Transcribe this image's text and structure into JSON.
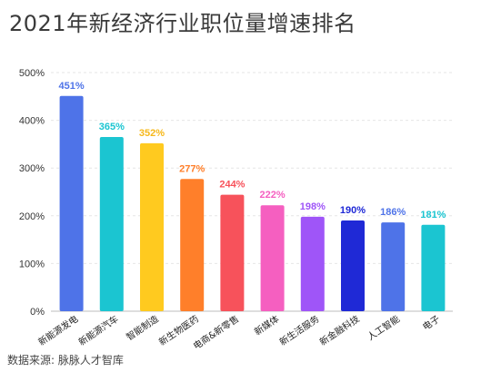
{
  "page": {
    "title": "2021年新经济行业职位量增速排名",
    "source": "数据来源: 脉脉人才智库"
  },
  "chart_data": {
    "type": "bar",
    "title": "2021年新经济行业职位量增速排名",
    "xlabel": "",
    "ylabel": "",
    "ylim": [
      0,
      500
    ],
    "yticks": [
      0,
      100,
      200,
      300,
      400,
      500
    ],
    "ytick_labels": [
      "0%",
      "100%",
      "200%",
      "300%",
      "400%",
      "500%"
    ],
    "grid": true,
    "categories": [
      "新能源发电",
      "新能源汽车",
      "智能制造",
      "新生物医药",
      "电商&新零售",
      "新媒体",
      "新生活服务",
      "新金融科技",
      "人工智能",
      "电子"
    ],
    "values": [
      451,
      365,
      352,
      277,
      244,
      222,
      198,
      190,
      186,
      181
    ],
    "data_labels": [
      "451%",
      "365%",
      "352%",
      "277%",
      "244%",
      "222%",
      "198%",
      "190%",
      "186%",
      "181%"
    ],
    "colors": [
      "#4e73e8",
      "#1bc5d1",
      "#ffca1f",
      "#ff7f2a",
      "#f7525b",
      "#f55fc0",
      "#9f55f8",
      "#1f29d6",
      "#4e73e8",
      "#1bc5d1"
    ],
    "label_colors": [
      "#4e73e8",
      "#1bc5d1",
      "#f6b81a",
      "#ff7f2a",
      "#f7525b",
      "#f55fc0",
      "#9f55f8",
      "#1f29d6",
      "#4e73e8",
      "#1bc5d1"
    ]
  }
}
